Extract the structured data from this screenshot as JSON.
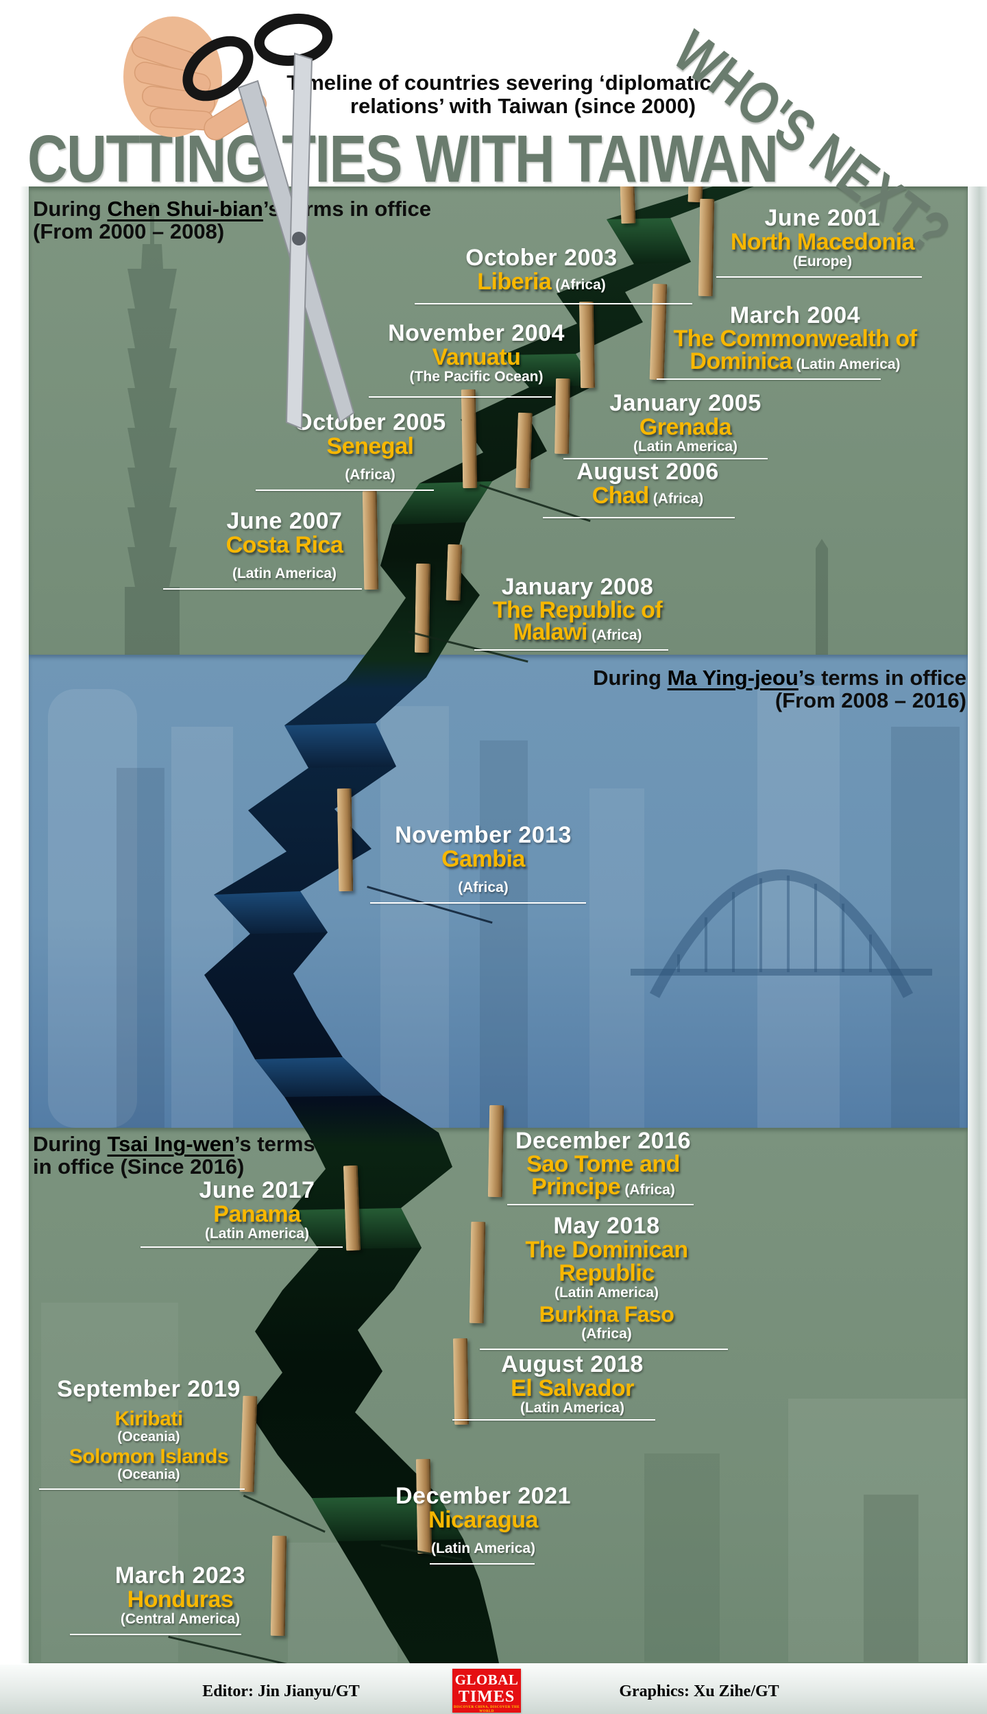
{
  "header": {
    "subtitle_line1": "Timeline of countries severing ‘diplomatic",
    "subtitle_line2": "relations’ with Taiwan (since 2000)",
    "title": "CUTTING TIES WITH TAIWAN",
    "whos_next": "WHO'S NEXT?"
  },
  "sections": [
    {
      "prefix": "During ",
      "leader": "Chen Shui-bian",
      "suffix": "’s terms in office",
      "line2": "(From 2000 – 2008)"
    },
    {
      "prefix": "During ",
      "leader": "Ma Ying-jeou",
      "suffix": "’s terms in office",
      "line2": "(From 2008 – 2016)"
    },
    {
      "prefix": "During ",
      "leader": "Tsai Ing-wen",
      "suffix": "’s terms",
      "line2": "in office (Since 2016)"
    }
  ],
  "entries": [
    {
      "date": "June 2001",
      "country": "North Macedonia",
      "region": "(Europe)"
    },
    {
      "date": "October 2003",
      "country": "Liberia",
      "region": "(Africa)"
    },
    {
      "date": "March 2004",
      "country": "The Commonwealth of Dominica",
      "region": "(Latin America)"
    },
    {
      "date": "November 2004",
      "country": "Vanuatu",
      "region": "(The Pacific Ocean)"
    },
    {
      "date": "January 2005",
      "country": "Grenada",
      "region": "(Latin America)"
    },
    {
      "date": "October 2005",
      "country": "Senegal",
      "region": "(Africa)"
    },
    {
      "date": "August 2006",
      "country": "Chad",
      "region": "(Africa)"
    },
    {
      "date": "June 2007",
      "country": "Costa Rica",
      "region": "(Latin America)"
    },
    {
      "date": "January 2008",
      "country": "The Republic of Malawi",
      "region": "(Africa)"
    },
    {
      "date": "November 2013",
      "country": "Gambia",
      "region": "(Africa)"
    },
    {
      "date": "December 2016",
      "country": "Sao Tome and Principe",
      "region": "(Africa)"
    },
    {
      "date": "June 2017",
      "country": "Panama",
      "region": "(Latin America)"
    },
    {
      "date": "May 2018",
      "country": "The Dominican Republic",
      "region": "(Latin America)",
      "country2": "Burkina Faso",
      "region2": "(Africa)"
    },
    {
      "date": "August 2018",
      "country": "El Salvador",
      "region": "(Latin America)"
    },
    {
      "date": "September 2019",
      "country": "Kiribati",
      "region": "(Oceania)",
      "country2": "Solomon Islands",
      "region2": "(Oceania)"
    },
    {
      "date": "December 2021",
      "country": "Nicaragua",
      "region": "(Latin America)"
    },
    {
      "date": "March 2023",
      "country": "Honduras",
      "region": "(Central America)"
    }
  ],
  "footer": {
    "editor": "Editor: Jin Jianyu/GT",
    "graphics": "Graphics: Xu Zihe/GT",
    "logo_line1": "GLOBAL",
    "logo_line2": "TIMES",
    "logo_tagline": "DISCOVER CHINA, DISCOVER THE WORLD"
  },
  "colors": {
    "accent_yellow": "#f8b700",
    "title_green": "#6a7c6e",
    "section_green": "#7b937e",
    "section_blue": "#6b93b4",
    "crack_dark": "#081a0e",
    "logo_red": "#e50f12"
  }
}
